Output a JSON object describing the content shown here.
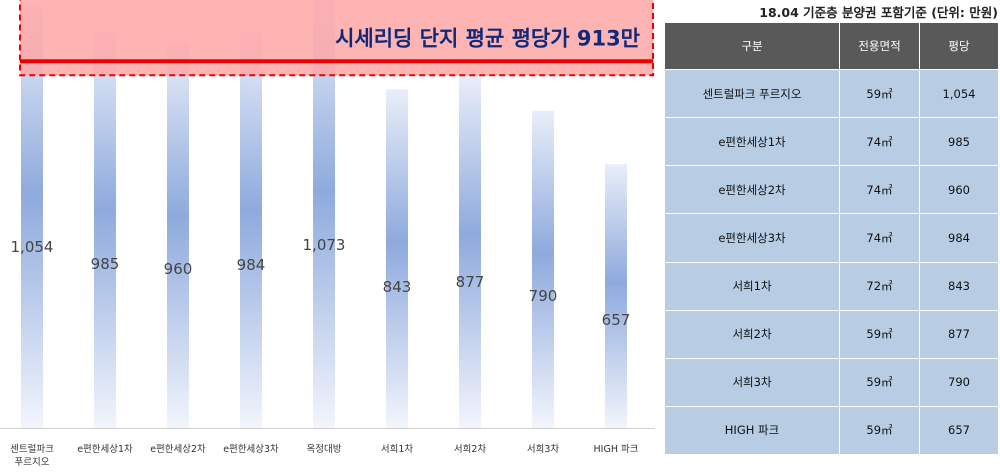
{
  "chart_data": {
    "type": "bar",
    "categories": [
      "센트럴파크\n푸르지오",
      "e편한세상1차",
      "e편한세상2차",
      "e편한세상3차",
      "옥정대방",
      "서희1차",
      "서희2차",
      "서희3차",
      "HIGH 파크"
    ],
    "values": [
      1054,
      985,
      960,
      984,
      1073,
      843,
      877,
      790,
      657
    ],
    "value_labels": [
      "1,054",
      "985",
      "960",
      "984",
      "1,073",
      "843",
      "877",
      "790",
      "657"
    ],
    "ylim": [
      0,
      1200
    ],
    "reference_line": {
      "value": 913,
      "label": "시세리딩 단지 평균 평당가 913만",
      "color": "#ee0000"
    },
    "highlight_band_range": [
      913,
      1200
    ],
    "colors": {
      "bar_top": "#e9eef9",
      "bar_mid": "#8eaadd",
      "bar_bottom": "#f2f5fc",
      "band_fill": "#ffa4a4",
      "band_border": "#ee0000",
      "label_color": "#102a7a"
    },
    "grid": false,
    "legend": "none"
  },
  "table": {
    "caption": "18.04 기준층 분양권 포함기준 (단위: 만원)",
    "headers": [
      "구분",
      "전용면적",
      "평당"
    ],
    "rows": [
      [
        "센트럴파크 푸르지오",
        "59㎡",
        "1,054"
      ],
      [
        "e편한세상1차",
        "74㎡",
        "985"
      ],
      [
        "e편한세상2차",
        "74㎡",
        "960"
      ],
      [
        "e편한세상3차",
        "74㎡",
        "984"
      ],
      [
        "서희1차",
        "72㎡",
        "843"
      ],
      [
        "서희2차",
        "59㎡",
        "877"
      ],
      [
        "서희3차",
        "59㎡",
        "790"
      ],
      [
        "HIGH 파크",
        "59㎡",
        "657"
      ]
    ]
  }
}
